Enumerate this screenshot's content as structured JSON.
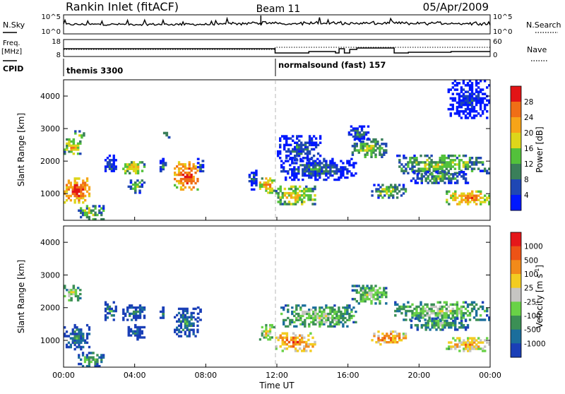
{
  "header": {
    "radar": "Rankin Inlet (fitACF)",
    "beam": "Beam 11",
    "date": "05/Apr/2009"
  },
  "noise_panel": {
    "left_label": "N.Sky",
    "left_ticks": [
      "10^5",
      "10^0"
    ],
    "right_label": "N.Search",
    "right_ticks": [
      "10^5",
      "10^0"
    ]
  },
  "freq_panel": {
    "left_label_top": "Freq.",
    "left_label_unit": "[MHz]",
    "left_ticks": [
      "18",
      "8"
    ],
    "right_label": "Nave",
    "right_ticks": [
      "60",
      "0"
    ]
  },
  "cpid": {
    "label": "CPID",
    "segments": [
      {
        "start_hour": 0.0,
        "text": "themis 3300"
      },
      {
        "start_hour": 11.9,
        "text": "normalsound (fast) 157"
      }
    ]
  },
  "x_axis": {
    "title": "Time UT",
    "ticks": [
      "00:00",
      "04:00",
      "08:00",
      "12:00",
      "16:00",
      "20:00",
      "00:00"
    ]
  },
  "power_panel": {
    "ylabel": "Slant Range [km]",
    "yticks": [
      "4000",
      "3000",
      "2000",
      "1000"
    ],
    "colorbar_title": "Power [dB]",
    "colorbar_ticks": [
      "28",
      "24",
      "20",
      "16",
      "12",
      "8",
      "4"
    ],
    "colors": [
      "#0018ff",
      "#1f47b4",
      "#3a7f5a",
      "#53c13b",
      "#ddd61a",
      "#f7a418",
      "#f06e16",
      "#e21416"
    ]
  },
  "velocity_panel": {
    "ylabel": "Slant Range [km]",
    "yticks": [
      "4000",
      "3000",
      "2000",
      "1000"
    ],
    "colorbar_title": "Velocity [m s",
    "colorbar_exponent": "-1",
    "colorbar_ticks": [
      "1000",
      "500",
      "100",
      "25",
      "-25",
      "-100",
      "-500",
      "-1000"
    ],
    "colors": [
      "#1a3fb7",
      "#1b6e9c",
      "#3b8f55",
      "#69d247",
      "#c6c5c2",
      "#f3cc21",
      "#f28a1a",
      "#ed5316",
      "#e5171a"
    ]
  },
  "chart_data": [
    {
      "type": "heatmap",
      "title": "Power",
      "xlabel": "Time UT",
      "ylabel": "Slant Range [km]",
      "xlim_hours": [
        0,
        24
      ],
      "ylim_km": [
        180,
        4500
      ],
      "colorbar": {
        "label": "Power [dB]",
        "ticks": [
          4,
          8,
          12,
          16,
          20,
          24,
          28
        ]
      },
      "echo_regions": [
        {
          "t": [
            0.0,
            1.5
          ],
          "r": [
            700,
            1500
          ],
          "level": 7
        },
        {
          "t": [
            0.0,
            1.0
          ],
          "r": [
            2200,
            2700
          ],
          "level": 5
        },
        {
          "t": [
            0.6,
            1.2
          ],
          "r": [
            2700,
            2950
          ],
          "level": 4
        },
        {
          "t": [
            0.8,
            2.3
          ],
          "r": [
            180,
            650
          ],
          "level": 4
        },
        {
          "t": [
            2.3,
            3.0
          ],
          "r": [
            1600,
            2200
          ],
          "level": 2
        },
        {
          "t": [
            3.3,
            4.6
          ],
          "r": [
            1600,
            2000
          ],
          "level": 5
        },
        {
          "t": [
            3.6,
            4.6
          ],
          "r": [
            1000,
            1500
          ],
          "level": 3
        },
        {
          "t": [
            5.4,
            5.8
          ],
          "r": [
            1600,
            2100
          ],
          "level": 2
        },
        {
          "t": [
            5.6,
            6.0
          ],
          "r": [
            2700,
            2900
          ],
          "level": 3
        },
        {
          "t": [
            6.2,
            7.6
          ],
          "r": [
            1100,
            2000
          ],
          "level": 7
        },
        {
          "t": [
            7.5,
            7.9
          ],
          "r": [
            1600,
            2100
          ],
          "level": 2
        },
        {
          "t": [
            10.4,
            10.9
          ],
          "r": [
            1100,
            1800
          ],
          "level": 2
        },
        {
          "t": [
            11.0,
            11.9
          ],
          "r": [
            1000,
            1500
          ],
          "level": 6
        },
        {
          "t": [
            11.9,
            14.2
          ],
          "r": [
            650,
            1250
          ],
          "level": 5
        },
        {
          "t": [
            12.2,
            16.5
          ],
          "r": [
            1400,
            2100
          ],
          "level": 2
        },
        {
          "t": [
            12.0,
            14.5
          ],
          "r": [
            2000,
            2800
          ],
          "level": 2
        },
        {
          "t": [
            16.2,
            18.2
          ],
          "r": [
            2100,
            2700
          ],
          "level": 4
        },
        {
          "t": [
            16.0,
            17.2
          ],
          "r": [
            2600,
            3100
          ],
          "level": 2
        },
        {
          "t": [
            17.3,
            19.3
          ],
          "r": [
            850,
            1300
          ],
          "level": 4
        },
        {
          "t": [
            18.6,
            24.0
          ],
          "r": [
            1600,
            2200
          ],
          "level": 4
        },
        {
          "t": [
            19.5,
            22.8
          ],
          "r": [
            1300,
            1700
          ],
          "level": 3
        },
        {
          "t": [
            21.5,
            24.0
          ],
          "r": [
            650,
            1100
          ],
          "level": 6
        },
        {
          "t": [
            21.6,
            24.0
          ],
          "r": [
            3300,
            4500
          ],
          "level": 1
        }
      ]
    },
    {
      "type": "heatmap",
      "title": "Velocity",
      "xlabel": "Time UT",
      "ylabel": "Slant Range [km]",
      "xlim_hours": [
        0,
        24
      ],
      "ylim_km": [
        180,
        4500
      ],
      "colorbar": {
        "label": "Velocity [m s-1]",
        "ticks": [
          -1000,
          -500,
          -100,
          -25,
          25,
          100,
          500,
          1000
        ]
      },
      "echo_regions": [
        {
          "t": [
            0.0,
            1.5
          ],
          "r": [
            700,
            1500
          ],
          "level": 2
        },
        {
          "t": [
            0.0,
            1.0
          ],
          "r": [
            2200,
            2700
          ],
          "level": 4
        },
        {
          "t": [
            0.8,
            2.3
          ],
          "r": [
            180,
            650
          ],
          "level": 3
        },
        {
          "t": [
            2.3,
            3.0
          ],
          "r": [
            1600,
            2200
          ],
          "level": 2
        },
        {
          "t": [
            3.3,
            4.6
          ],
          "r": [
            1600,
            2100
          ],
          "level": 2
        },
        {
          "t": [
            3.6,
            4.6
          ],
          "r": [
            1000,
            1500
          ],
          "level": 1
        },
        {
          "t": [
            5.4,
            5.8
          ],
          "r": [
            1600,
            2100
          ],
          "level": 1
        },
        {
          "t": [
            6.2,
            7.6
          ],
          "r": [
            1100,
            2000
          ],
          "level": 2
        },
        {
          "t": [
            7.5,
            7.9
          ],
          "r": [
            1600,
            2100
          ],
          "level": 0
        },
        {
          "t": [
            11.0,
            11.9
          ],
          "r": [
            1000,
            1500
          ],
          "level": 5
        },
        {
          "t": [
            11.9,
            14.2
          ],
          "r": [
            650,
            1250
          ],
          "level": 7
        },
        {
          "t": [
            12.2,
            16.5
          ],
          "r": [
            1400,
            2100
          ],
          "level": 4
        },
        {
          "t": [
            16.2,
            18.2
          ],
          "r": [
            2100,
            2700
          ],
          "level": 4
        },
        {
          "t": [
            17.3,
            19.3
          ],
          "r": [
            850,
            1300
          ],
          "level": 7
        },
        {
          "t": [
            18.6,
            24.0
          ],
          "r": [
            1600,
            2200
          ],
          "level": 4
        },
        {
          "t": [
            19.5,
            22.8
          ],
          "r": [
            1300,
            1700
          ],
          "level": 3
        },
        {
          "t": [
            21.5,
            24.0
          ],
          "r": [
            650,
            1100
          ],
          "level": 6
        }
      ]
    }
  ]
}
